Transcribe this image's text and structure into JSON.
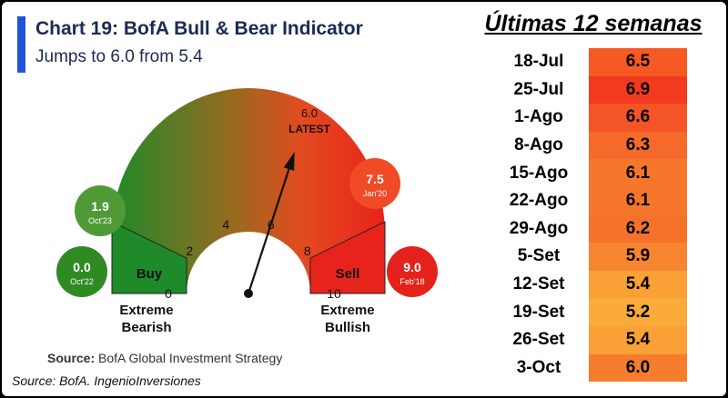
{
  "chart_data": {
    "type": "gauge",
    "title": "Chart 19: BofA Bull & Bear Indicator",
    "subtitle": "Jumps to 6.0 from 5.4",
    "range": [
      0,
      10
    ],
    "ticks": [
      "0",
      "2",
      "4",
      "6",
      "8",
      "10"
    ],
    "value": 6.0,
    "value_label": "6.0",
    "value_caption": "LATEST",
    "zones": [
      {
        "label": "Buy",
        "from": 0,
        "to": 2
      },
      {
        "label": "Sell",
        "from": 8,
        "to": 10
      }
    ],
    "extreme_left": {
      "line1": "Extreme",
      "line2": "Bearish"
    },
    "extreme_right": {
      "line1": "Extreme",
      "line2": "Bullish"
    },
    "callouts": [
      {
        "value": "1.9",
        "date": "Oct'23",
        "color": "#4f9a36"
      },
      {
        "value": "0.0",
        "date": "Oct'22",
        "color": "#2f8a22"
      },
      {
        "value": "7.5",
        "date": "Jan'20",
        "color": "#f04a26"
      },
      {
        "value": "9.0",
        "date": "Feb'18",
        "color": "#e3231b"
      }
    ],
    "source_label": "Source:",
    "source_text": "BofA Global Investment Strategy",
    "colors": {
      "bull": "#1f8a2a",
      "bear": "#e8231c",
      "accent": "#1f55d6"
    }
  },
  "table": {
    "title": "Últimas 12 semanas",
    "rows": [
      {
        "date": "18-Jul",
        "value": "6.5",
        "color": "#f55a25"
      },
      {
        "date": "25-Jul",
        "value": "6.9",
        "color": "#f23a1f"
      },
      {
        "date": "1-Ago",
        "value": "6.6",
        "color": "#f45426"
      },
      {
        "date": "8-Ago",
        "value": "6.3",
        "color": "#f56a2a"
      },
      {
        "date": "15-Ago",
        "value": "6.1",
        "color": "#f6772c"
      },
      {
        "date": "22-Ago",
        "value": "6.1",
        "color": "#f6772c"
      },
      {
        "date": "29-Ago",
        "value": "6.2",
        "color": "#f6722b"
      },
      {
        "date": "5-Set",
        "value": "5.9",
        "color": "#f78530"
      },
      {
        "date": "12-Set",
        "value": "5.4",
        "color": "#f9a037"
      },
      {
        "date": "19-Set",
        "value": "5.2",
        "color": "#faab3a"
      },
      {
        "date": "26-Set",
        "value": "5.4",
        "color": "#f9a037"
      },
      {
        "date": "3-Oct",
        "value": "6.0",
        "color": "#f67d2e"
      }
    ]
  },
  "caption": "Source: BofA. IngenioInversiones"
}
